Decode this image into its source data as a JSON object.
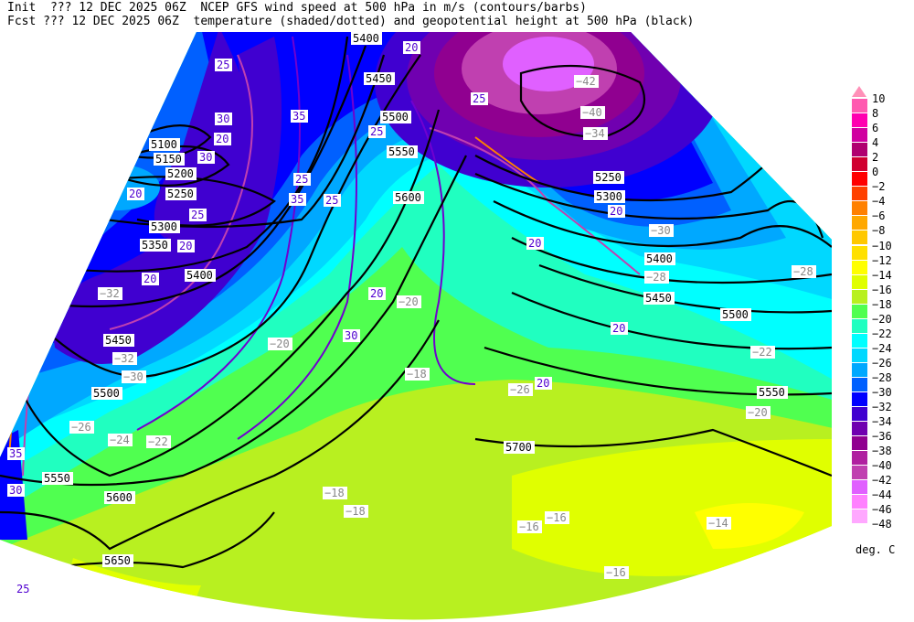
{
  "header": {
    "line1": "Init  ??? 12 DEC 2025 06Z  NCEP GFS wind speed at 500 hPa in m/s (contours/barbs)",
    "line2": "Fcst ??? 12 DEC 2025 06Z  temperature (shaded/dotted) and geopotential height at 500 hPa (black)"
  },
  "colorbar": {
    "labels": [
      "10",
      "8",
      "6",
      "4",
      "2",
      "0",
      "−2",
      "−4",
      "−6",
      "−8",
      "−10",
      "−12",
      "−14",
      "−16",
      "−18",
      "−20",
      "−22",
      "−24",
      "−26",
      "−28",
      "−30",
      "−32",
      "−34",
      "−36",
      "−38",
      "−40",
      "−42",
      "−44",
      "−46",
      "−48"
    ],
    "arrow_color": "#ff90b8",
    "colors": [
      "#ff5ab0",
      "#ff00b0",
      "#d000a0",
      "#b00070",
      "#d00030",
      "#ff0000",
      "#ff4000",
      "#ff8000",
      "#ffa800",
      "#ffc800",
      "#ffe000",
      "#ffff00",
      "#e0ff00",
      "#b8f020",
      "#50ff50",
      "#20ffc0",
      "#00ffff",
      "#00d8ff",
      "#00a8ff",
      "#0060ff",
      "#0000ff",
      "#4000d0",
      "#7000b0",
      "#900090",
      "#b020a0",
      "#c040b0",
      "#e060ff",
      "#ff80ff",
      "#ffa8ff"
    ],
    "units": "deg. C"
  },
  "map": {
    "height_labels": [
      "5400",
      "5450",
      "5500",
      "5550",
      "5600",
      "5100",
      "5150",
      "5200",
      "5250",
      "5300",
      "5350",
      "5400",
      "5450",
      "5500",
      "5550",
      "5600",
      "5650",
      "5700",
      "5250",
      "5300",
      "5400",
      "5450",
      "5500",
      "5550"
    ],
    "wind_labels": [
      "20",
      "25",
      "30",
      "35",
      "25",
      "20",
      "25",
      "20",
      "30",
      "35",
      "25",
      "20",
      "20",
      "25",
      "20",
      "30",
      "25",
      "20",
      "20",
      "20",
      "20",
      "35",
      "30",
      "25"
    ],
    "temp_labels": [
      "−42",
      "−40",
      "−34",
      "−30",
      "−32",
      "−32",
      "−30",
      "−28",
      "−26",
      "−24",
      "−22",
      "−20",
      "−20",
      "−18",
      "−18",
      "−18",
      "−16",
      "−16",
      "−16",
      "−14",
      "−22",
      "−20",
      "−28",
      "−26"
    ]
  }
}
